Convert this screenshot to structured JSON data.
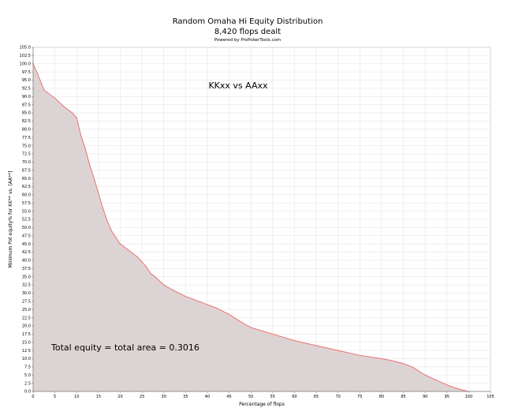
{
  "chart_data": {
    "type": "area",
    "title": "Random Omaha Hi Equity Distribution",
    "subtitle": "8,420 flops dealt",
    "credit": "Powered by ProPokerTools.com",
    "xlabel": "Percentage of flops",
    "ylabel": "Minimum Pot equity% for KK** vs. [AA**]",
    "xlim": [
      0,
      105
    ],
    "ylim": [
      0,
      105
    ],
    "x_ticks": [
      0,
      5,
      10,
      15,
      20,
      25,
      30,
      35,
      40,
      45,
      50,
      55,
      60,
      65,
      70,
      75,
      80,
      85,
      90,
      95,
      100,
      105
    ],
    "y_ticks": [
      0.0,
      2.5,
      5.0,
      7.5,
      10.0,
      12.5,
      15.0,
      17.5,
      20.0,
      22.5,
      25.0,
      27.5,
      30.0,
      32.5,
      35.0,
      37.5,
      40.0,
      42.5,
      45.0,
      47.5,
      50.0,
      52.5,
      55.0,
      57.5,
      60.0,
      62.5,
      65.0,
      67.5,
      70.0,
      72.5,
      75.0,
      77.5,
      80.0,
      82.5,
      85.0,
      87.5,
      90.0,
      92.5,
      95.0,
      97.5,
      100.0,
      102.5,
      105.0
    ],
    "grid": true,
    "colors": {
      "line": "#f07070",
      "fill": "#dcd4d4",
      "grid": "#e6e6e6"
    },
    "annotations": [
      "KKxx vs AAxx",
      "Total equity = total area = 0.3016"
    ],
    "series": [
      {
        "x": [
          0,
          1,
          2.5,
          5,
          7,
          9,
          10,
          11,
          12,
          13,
          14,
          15,
          16,
          17,
          18,
          19,
          20,
          22,
          24,
          25,
          26,
          27,
          28,
          30,
          32,
          35,
          38,
          40,
          42,
          45,
          48,
          50,
          55,
          60,
          65,
          70,
          75,
          80,
          82,
          85,
          87,
          90,
          95,
          97,
          99,
          100
        ],
        "y": [
          100,
          97,
          92,
          89.5,
          87,
          85,
          83.5,
          78,
          74,
          69,
          65,
          60.5,
          56,
          52,
          49,
          47,
          45,
          43,
          41,
          39.5,
          38,
          36,
          35,
          32.5,
          31,
          29,
          27.5,
          26.5,
          25.5,
          23.5,
          21,
          19.5,
          17.5,
          15.5,
          14,
          12.5,
          11,
          10,
          9.5,
          8.5,
          7.5,
          5,
          2,
          1,
          0.3,
          0
        ]
      }
    ]
  }
}
